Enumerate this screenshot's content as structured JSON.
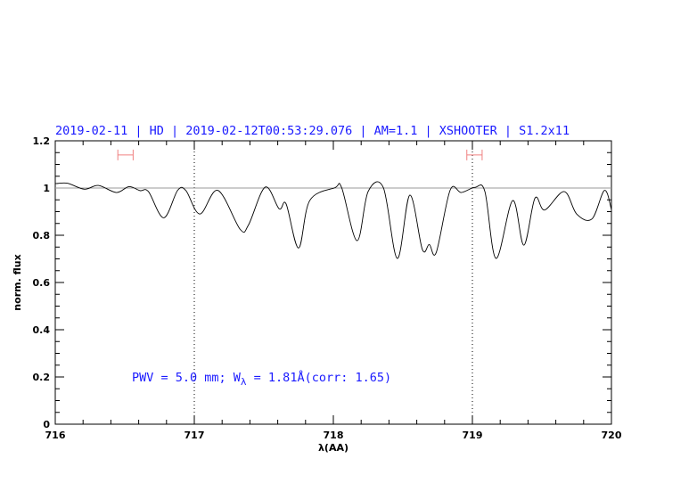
{
  "chart_data": {
    "type": "line",
    "title": "2019-02-11 | HD | 2019-02-12T00:53:29.076 | AM=1.1 | XSHOOTER | S1.2x11",
    "xlabel": "λ(AA)",
    "ylabel": "norm. flux",
    "xlim": [
      716,
      720
    ],
    "ylim": [
      0,
      1.2
    ],
    "xticks": [
      716,
      717,
      718,
      719,
      720
    ],
    "xtick_labels": [
      "716",
      "717",
      "718",
      "719",
      "720"
    ],
    "yticks": [
      0,
      0.2,
      0.4,
      0.6,
      0.8,
      1.0,
      1.2
    ],
    "ytick_labels": [
      "0",
      "0.2",
      "0.4",
      "0.6",
      "0.8",
      "1",
      "1.2"
    ],
    "grid": false,
    "reference_line": {
      "y": 1.0,
      "color": "#f08080"
    },
    "vertical_dotted_lines": [
      717,
      719
    ],
    "continuum_ranges": [
      {
        "x": [
          716.45,
          716.56
        ],
        "y": 1.14,
        "color": "#f08080"
      },
      {
        "x": [
          718.96,
          719.07
        ],
        "y": 1.14,
        "color": "#f08080"
      }
    ],
    "annotation": {
      "prefix": "PWV = 5.0 mm; W",
      "subscript": "λ",
      "suffix": " = 1.81Å(corr: 1.65)"
    },
    "series": [
      {
        "color": "#000000",
        "x": [
          716.0,
          716.01,
          716.09,
          716.21,
          716.31,
          716.44,
          716.53,
          716.61,
          716.67,
          716.78,
          716.88,
          716.94,
          717.04,
          717.17,
          717.33,
          717.39,
          717.51,
          717.61,
          717.66,
          717.75,
          717.83,
          718.01,
          718.06,
          718.17,
          718.25,
          718.36,
          718.46,
          718.55,
          718.64,
          718.69,
          718.74,
          718.84,
          718.92,
          719.02,
          719.09,
          719.17,
          719.29,
          719.37,
          719.45,
          719.52,
          719.66,
          719.75,
          719.86,
          719.95,
          720.0
        ],
        "y": [
          1.02,
          1.019,
          1.02,
          0.995,
          1.011,
          0.981,
          1.006,
          0.989,
          0.985,
          0.874,
          0.99,
          0.989,
          0.89,
          0.99,
          0.825,
          0.844,
          1.004,
          0.912,
          0.933,
          0.746,
          0.947,
          1.001,
          1.001,
          0.777,
          0.985,
          1.001,
          0.702,
          0.97,
          0.74,
          0.761,
          0.727,
          0.991,
          0.981,
          1.003,
          0.985,
          0.702,
          0.947,
          0.758,
          0.957,
          0.907,
          0.985,
          0.89,
          0.869,
          0.99,
          0.909
        ]
      }
    ]
  }
}
